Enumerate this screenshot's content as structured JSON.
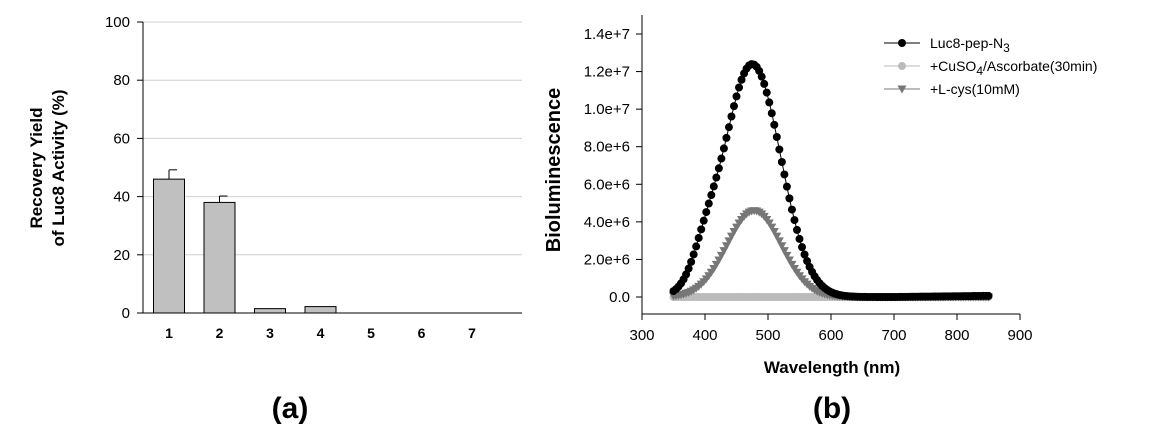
{
  "chart_data": [
    {
      "type": "bar",
      "panel_label": "(a)",
      "ylabel_line1": "Recovery Yield",
      "ylabel_line2": "of Luc8 Activity (%)",
      "xlabel": "",
      "ylim": [
        0,
        100
      ],
      "yticks": [
        "0",
        "20",
        "40",
        "60",
        "80",
        "100"
      ],
      "grid": "horizontal",
      "categories": [
        "1",
        "2",
        "3",
        "4",
        "5",
        "6",
        "7"
      ],
      "values": [
        46,
        38,
        1.5,
        2.2,
        0,
        0,
        0
      ],
      "errors": [
        3.2,
        2.2,
        0,
        0,
        0,
        0,
        0
      ],
      "bar_color": "#c0c0c0"
    },
    {
      "type": "line",
      "panel_label": "(b)",
      "xlabel": "Wavelength (nm)",
      "ylabel": "Bioluminescence",
      "xlim": [
        300,
        900
      ],
      "ylim": [
        0,
        14000000
      ],
      "xticks": [
        "300",
        "400",
        "500",
        "600",
        "700",
        "800",
        "900"
      ],
      "yticks": [
        "0.0",
        "2.0e+6",
        "4.0e+6",
        "6.0e+6",
        "8.0e+6",
        "1.0e+7",
        "1.2e+7",
        "1.4e+7"
      ],
      "legend_position": "top-right",
      "series": [
        {
          "name": "Luc8-pep-N",
          "subscript": "3",
          "suffix": "",
          "color": "#000000",
          "marker": "circle",
          "peak_x": 475,
          "peak_y": 12400000,
          "sigma": 45,
          "x": [
            350,
            850
          ]
        },
        {
          "name": "+CuSO",
          "subscript": "4",
          "suffix": "/Ascorbate(30min)",
          "color": "#bbbbbb",
          "marker": "circle",
          "peak_x": 475,
          "peak_y": 0,
          "x": [
            350,
            850
          ]
        },
        {
          "name": "+L-cys(10mM)",
          "subscript": "",
          "suffix": "",
          "color": "#777777",
          "marker": "triangle-down",
          "peak_x": 478,
          "peak_y": 4600000,
          "sigma": 43,
          "x": [
            350,
            850
          ]
        }
      ]
    }
  ]
}
